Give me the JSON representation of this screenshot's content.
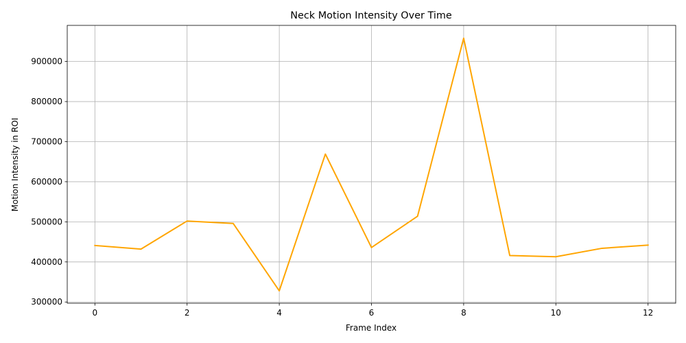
{
  "chart_data": {
    "type": "line",
    "title": "Neck Motion Intensity Over Time",
    "xlabel": "Frame Index",
    "ylabel": "Motion Intensity in ROI",
    "xlim": [
      -0.6,
      12.6
    ],
    "ylim": [
      297000,
      990000
    ],
    "x_ticks": [
      0,
      2,
      4,
      6,
      8,
      10,
      12
    ],
    "y_ticks": [
      300000,
      400000,
      500000,
      600000,
      700000,
      800000,
      900000
    ],
    "grid": true,
    "series": [
      {
        "x": [
          0,
          1,
          2,
          3,
          4,
          5,
          6,
          7,
          8,
          9,
          10,
          11,
          12
        ],
        "values": [
          441000,
          432000,
          502000,
          496000,
          328000,
          669000,
          436000,
          514000,
          958000,
          416000,
          413000,
          434000,
          442000
        ],
        "color": "#ffa500"
      }
    ]
  }
}
